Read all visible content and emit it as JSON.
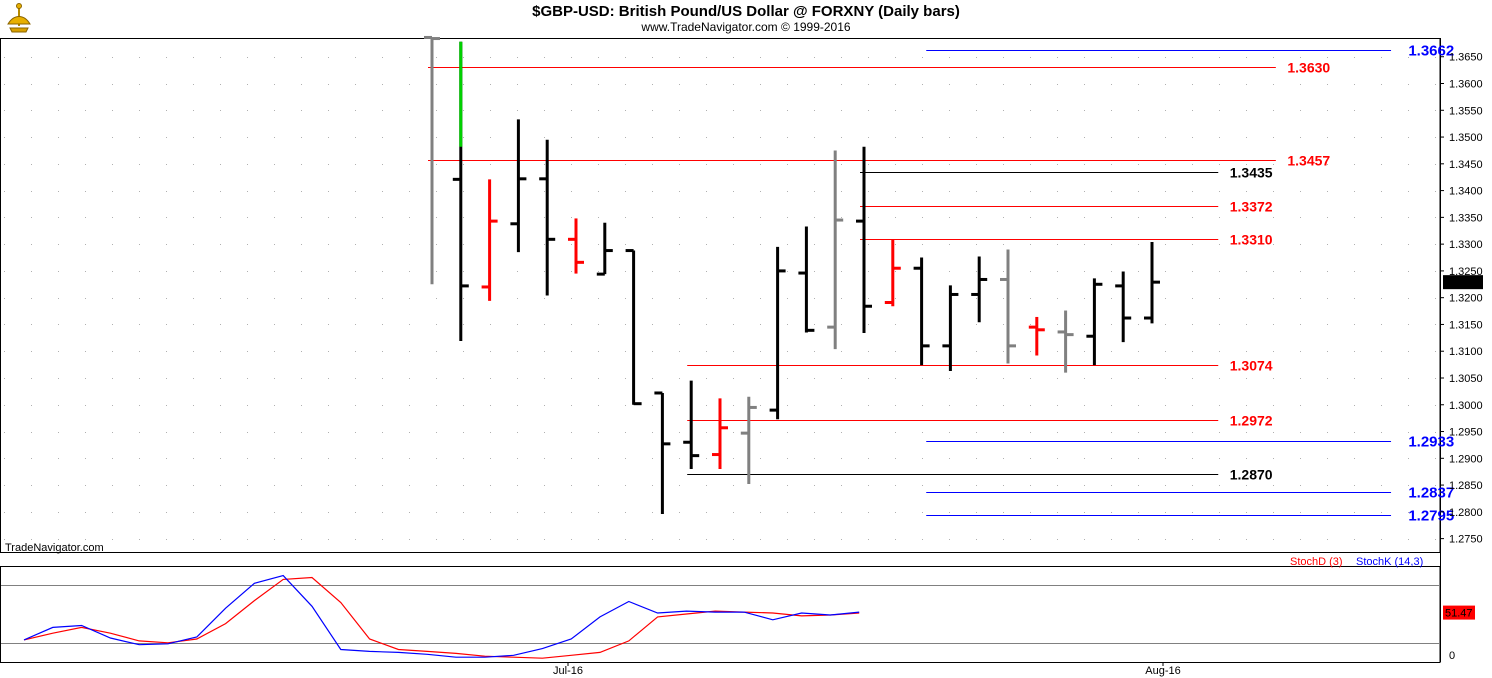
{
  "header": {
    "title": "$GBP-USD:  British Pound/US Dollar @ FORXNY  (Daily bars)",
    "subtitle": "www.TradeNavigator.com © 1999-2016"
  },
  "watermark": "TradeNavigator.com",
  "colors": {
    "up_bar": "#000000",
    "down_bar": "#ff0000",
    "neutral_bar": "#808080",
    "highlight_bar": "#00d000",
    "fib_red": "#ff0000",
    "fib_black": "#000000",
    "fib_blue": "#0000ff",
    "stoch_d": "#ff0000",
    "stoch_k": "#0000ff",
    "last_price_bg": "#000000",
    "stoch_value_bg": "#ff0000"
  },
  "chart_data": [
    {
      "type": "ohlc",
      "ylim": [
        1.2725,
        1.3685
      ],
      "y_ticks": [
        "1.3650",
        "1.3600",
        "1.3550",
        "1.3500",
        "1.3450",
        "1.3400",
        "1.3350",
        "1.3300",
        "1.3250",
        "1.3200",
        "1.3150",
        "1.3100",
        "1.3050",
        "1.3000",
        "1.2950",
        "1.2900",
        "1.2850",
        "1.2800",
        "1.2750"
      ],
      "x_labels": [
        "Jul-16",
        "Aug-16"
      ],
      "last_price": "1.3229",
      "bars": [
        {
          "o": 1.3686,
          "h": 1.3686,
          "l": 1.3225,
          "c": 1.3684,
          "color": "gray"
        },
        {
          "o": 1.3421,
          "h": 1.3678,
          "l": 1.3119,
          "c": 1.3222,
          "color": "black",
          "top_color": "green",
          "top_from": 1.3482
        },
        {
          "o": 1.322,
          "h": 1.3421,
          "l": 1.3194,
          "c": 1.3343,
          "color": "red"
        },
        {
          "o": 1.3338,
          "h": 1.3533,
          "l": 1.3285,
          "c": 1.3422,
          "color": "black"
        },
        {
          "o": 1.3422,
          "h": 1.3495,
          "l": 1.3204,
          "c": 1.3309,
          "color": "black"
        },
        {
          "o": 1.3309,
          "h": 1.3348,
          "l": 1.3245,
          "c": 1.3266,
          "color": "red"
        },
        {
          "o": 1.3244,
          "h": 1.334,
          "l": 1.3244,
          "c": 1.3288,
          "color": "black"
        },
        {
          "o": 1.3288,
          "h": 1.3288,
          "l": 1.3,
          "c": 1.3002,
          "color": "black"
        },
        {
          "o": 1.3022,
          "h": 1.3022,
          "l": 1.2796,
          "c": 1.2927,
          "color": "black"
        },
        {
          "o": 1.293,
          "h": 1.3045,
          "l": 1.288,
          "c": 1.2905,
          "color": "black"
        },
        {
          "o": 1.2907,
          "h": 1.3012,
          "l": 1.288,
          "c": 1.2957,
          "color": "red"
        },
        {
          "o": 1.2947,
          "h": 1.3015,
          "l": 1.2852,
          "c": 1.2995,
          "color": "gray"
        },
        {
          "o": 1.299,
          "h": 1.3295,
          "l": 1.2973,
          "c": 1.325,
          "color": "black"
        },
        {
          "o": 1.3246,
          "h": 1.3333,
          "l": 1.3135,
          "c": 1.3139,
          "color": "black"
        },
        {
          "o": 1.3145,
          "h": 1.3475,
          "l": 1.3104,
          "c": 1.3345,
          "color": "gray"
        },
        {
          "o": 1.3343,
          "h": 1.3482,
          "l": 1.3134,
          "c": 1.3184,
          "color": "black"
        },
        {
          "o": 1.3191,
          "h": 1.3308,
          "l": 1.3184,
          "c": 1.3255,
          "color": "red"
        },
        {
          "o": 1.3255,
          "h": 1.3275,
          "l": 1.3074,
          "c": 1.311,
          "color": "black"
        },
        {
          "o": 1.311,
          "h": 1.3223,
          "l": 1.3063,
          "c": 1.3206,
          "color": "black"
        },
        {
          "o": 1.3206,
          "h": 1.3277,
          "l": 1.3154,
          "c": 1.3234,
          "color": "black"
        },
        {
          "o": 1.3234,
          "h": 1.329,
          "l": 1.3077,
          "c": 1.311,
          "color": "gray"
        },
        {
          "o": 1.3145,
          "h": 1.3164,
          "l": 1.3092,
          "c": 1.314,
          "color": "red"
        },
        {
          "o": 1.3136,
          "h": 1.3176,
          "l": 1.306,
          "c": 1.3131,
          "color": "gray"
        },
        {
          "o": 1.3128,
          "h": 1.3236,
          "l": 1.3074,
          "c": 1.3225,
          "color": "black"
        },
        {
          "o": 1.3222,
          "h": 1.3249,
          "l": 1.3117,
          "c": 1.3162,
          "color": "black"
        },
        {
          "o": 1.3162,
          "h": 1.3304,
          "l": 1.3152,
          "c": 1.3229,
          "color": "black"
        }
      ],
      "levels": [
        {
          "value": 1.3662,
          "label": "1.3662",
          "color": "blue",
          "start_bar": 17.3,
          "end_bar": 33.3,
          "label_bar": 33.9
        },
        {
          "value": 1.363,
          "label": "1.3630",
          "color": "red",
          "start_bar": 0,
          "end_bar": 29.3,
          "label_bar": 29.7
        },
        {
          "value": 1.3457,
          "label": "1.3457",
          "color": "red",
          "start_bar": 0,
          "end_bar": 29.3,
          "label_bar": 29.7
        },
        {
          "value": 1.3435,
          "label": "1.3435",
          "color": "black",
          "start_bar": 15,
          "end_bar": 27.3,
          "label_bar": 27.7
        },
        {
          "value": 1.3372,
          "label": "1.3372",
          "color": "red",
          "start_bar": 15,
          "end_bar": 27.3,
          "label_bar": 27.7
        },
        {
          "value": 1.331,
          "label": "1.3310",
          "color": "red",
          "start_bar": 15,
          "end_bar": 27.3,
          "label_bar": 27.7
        },
        {
          "value": 1.3074,
          "label": "1.3074",
          "color": "red",
          "start_bar": 9,
          "end_bar": 27.3,
          "label_bar": 27.7
        },
        {
          "value": 1.2972,
          "label": "1.2972",
          "color": "red",
          "start_bar": 9,
          "end_bar": 27.3,
          "label_bar": 27.7
        },
        {
          "value": 1.2933,
          "label": "1.2933",
          "color": "blue",
          "start_bar": 17.3,
          "end_bar": 33.3,
          "label_bar": 33.9
        },
        {
          "value": 1.287,
          "label": "1.2870",
          "color": "black",
          "start_bar": 9,
          "end_bar": 27.3,
          "label_bar": 27.7
        },
        {
          "value": 1.2837,
          "label": "1.2837",
          "color": "blue",
          "start_bar": 17.3,
          "end_bar": 33.3,
          "label_bar": 33.9
        },
        {
          "value": 1.2795,
          "label": "1.2795",
          "color": "blue",
          "start_bar": 17.3,
          "end_bar": 33.3,
          "label_bar": 33.9
        }
      ]
    },
    {
      "type": "line",
      "ylim": [
        0,
        100
      ],
      "y_ticks": [
        "0"
      ],
      "reference_lines": [
        80,
        20
      ],
      "current_value": "51.47",
      "legend": [
        "StochD (3)",
        "StochK (14,3)"
      ],
      "series": [
        {
          "name": "StochD (3)",
          "color": "red",
          "values": [
            23,
            30,
            36,
            30,
            22,
            20,
            24,
            40,
            64,
            86,
            88,
            62,
            24,
            13,
            11,
            9,
            6,
            5,
            4,
            7,
            10,
            22,
            47,
            50,
            53,
            52,
            51,
            48,
            49,
            51
          ]
        },
        {
          "name": "StochK (14,3)",
          "color": "blue",
          "values": [
            23,
            36,
            38,
            25,
            18,
            19,
            26,
            56,
            82,
            90,
            58,
            13,
            11,
            10,
            8,
            5,
            5,
            7,
            14,
            24,
            47,
            63,
            51,
            53,
            52,
            52,
            44,
            51,
            49,
            52
          ]
        }
      ]
    }
  ]
}
